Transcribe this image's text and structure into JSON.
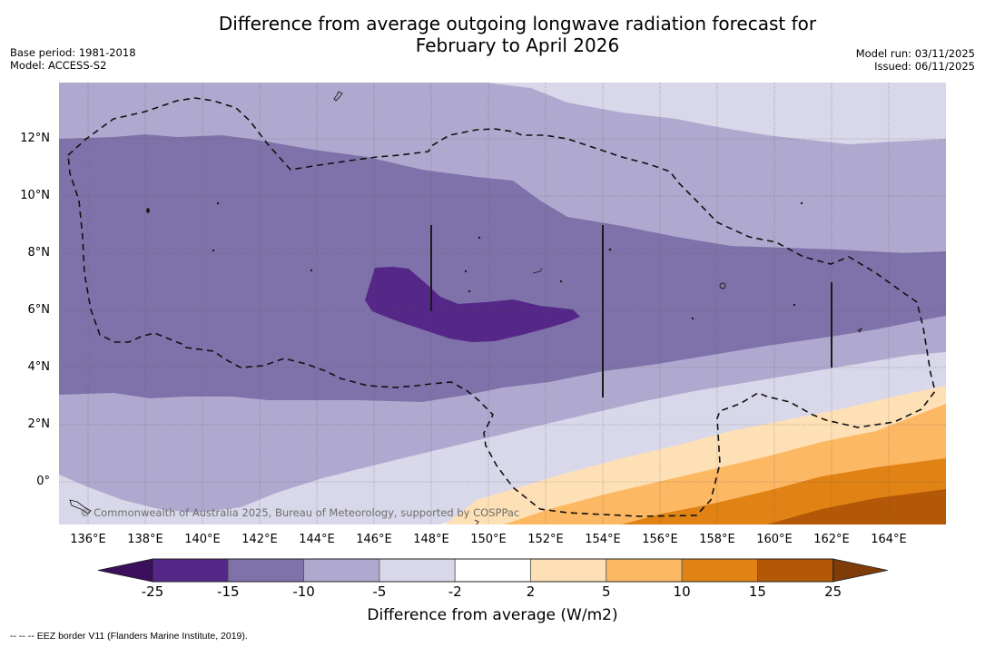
{
  "header": {
    "title_line1": "Difference from average outgoing longwave radiation forecast for",
    "title_line2": "February to April 2026",
    "base_period": "Base period: 1981-2018",
    "model": "Model: ACCESS-S2",
    "model_run": "Model run: 03/11/2025",
    "issued": "Issued: 06/11/2025"
  },
  "map": {
    "extent": {
      "lon": [
        135,
        166
      ],
      "lat": [
        -1.5,
        14
      ]
    },
    "lon_ticks": [
      "136°E",
      "138°E",
      "140°E",
      "142°E",
      "144°E",
      "146°E",
      "148°E",
      "150°E",
      "152°E",
      "154°E",
      "156°E",
      "158°E",
      "160°E",
      "162°E",
      "164°E"
    ],
    "lat_ticks": [
      "12°N",
      "10°N",
      "8°N",
      "6°N",
      "4°N",
      "2°N",
      "0°"
    ],
    "copyright": "© Commonwealth of Australia 2025, Bureau of Meteorology, supported by COSPPac",
    "eez_border_style": "dashed"
  },
  "colorbar": {
    "label": "Difference from average (W/m2)",
    "ticks": [
      "-25",
      "-15",
      "-10",
      "-5",
      "-2",
      "2",
      "5",
      "10",
      "15",
      "25"
    ],
    "bins": [
      {
        "range": "< -25",
        "color": "#3b0f5c"
      },
      {
        "range": "-25 to -15",
        "color": "#542788"
      },
      {
        "range": "-15 to -10",
        "color": "#7f72aa"
      },
      {
        "range": "-10 to -5",
        "color": "#b0a9cf"
      },
      {
        "range": "-5 to -2",
        "color": "#d8d8ea"
      },
      {
        "range": "-2 to 2",
        "color": "#ffffff"
      },
      {
        "range": "2 to 5",
        "color": "#fee0b6"
      },
      {
        "range": "5 to 10",
        "color": "#fdb863"
      },
      {
        "range": "10 to 15",
        "color": "#e08214"
      },
      {
        "range": "15 to 25",
        "color": "#b35806"
      },
      {
        "range": "> 25",
        "color": "#7f3b08"
      }
    ]
  },
  "footnote": "--  --  -- EEZ border V11 (Flanders Marine Institute, 2019)."
}
